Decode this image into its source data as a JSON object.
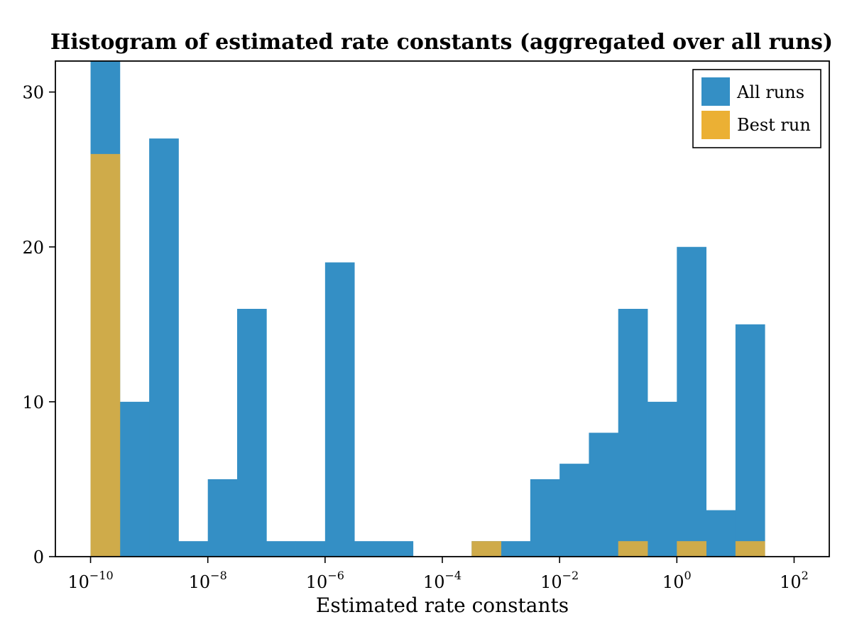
{
  "chart_data": {
    "type": "bar",
    "title": "Histogram of estimated rate constants (aggregated over all runs)",
    "xlabel": "Estimated rate constants",
    "ylabel": "",
    "x_scale": "log10",
    "bin_width_decades": 0.5,
    "xlim_log10": [
      -10.6,
      2.6
    ],
    "ylim": [
      0,
      32
    ],
    "grid": false,
    "legend_position": "top-right",
    "x_ticks": [
      {
        "base": "10",
        "exp": "−10",
        "log10": -10
      },
      {
        "base": "10",
        "exp": "−8",
        "log10": -8
      },
      {
        "base": "10",
        "exp": "−6",
        "log10": -6
      },
      {
        "base": "10",
        "exp": "−4",
        "log10": -4
      },
      {
        "base": "10",
        "exp": "−2",
        "log10": -2
      },
      {
        "base": "10",
        "exp": "0",
        "log10": 0
      },
      {
        "base": "10",
        "exp": "2",
        "log10": 2
      }
    ],
    "y_ticks": [
      {
        "label": "0",
        "value": 0
      },
      {
        "label": "10",
        "value": 10
      },
      {
        "label": "20",
        "value": 20
      },
      {
        "label": "30",
        "value": 30
      }
    ],
    "bin_edges_log10": [
      -10,
      -9.5,
      -9,
      -8.5,
      -8,
      -7.5,
      -7,
      -6.5,
      -6,
      -5.5,
      -5,
      -4.5,
      -4,
      -3.5,
      -3,
      -2.5,
      -2,
      -1.5,
      -1,
      -0.5,
      0,
      0.5,
      1,
      1.5
    ],
    "series": [
      {
        "name": "All runs",
        "color": "#348fc5",
        "values": [
          32,
          10,
          27,
          1,
          5,
          16,
          1,
          1,
          19,
          1,
          1,
          0,
          0,
          1,
          1,
          5,
          6,
          8,
          16,
          10,
          20,
          3,
          15
        ]
      },
      {
        "name": "Best run",
        "color": "#ebb034",
        "values": [
          26,
          0,
          0,
          0,
          0,
          0,
          0,
          0,
          0,
          0,
          0,
          0,
          0,
          1,
          0,
          0,
          0,
          0,
          1,
          0,
          1,
          0,
          1
        ]
      }
    ]
  }
}
